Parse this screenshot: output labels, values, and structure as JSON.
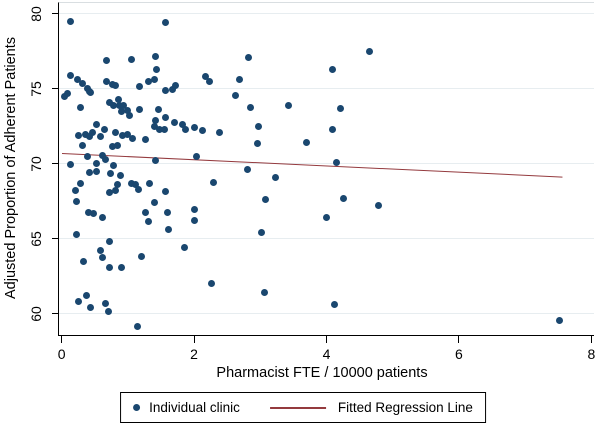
{
  "chart_data": {
    "type": "scatter",
    "title": "",
    "xlabel": "Pharmacist FTE / 10000 patients",
    "ylabel": "Adjusted Proportion of Adherent Patients",
    "xlim": [
      -0.04,
      8.04
    ],
    "ylim": [
      58.6,
      80.7
    ],
    "xticks": [
      0,
      2,
      4,
      6,
      8
    ],
    "yticks": [
      60,
      65,
      70,
      75,
      80
    ],
    "grid": "horizontal-only",
    "grid_color": "#e7edf0",
    "legend_position": "bottom-center-boxed",
    "series": [
      {
        "name": "Individual clinic",
        "type": "scatter",
        "color": "#1a476f",
        "points": [
          [
            0.14,
            79.45
          ],
          [
            1.57,
            79.4
          ],
          [
            0.68,
            76.85
          ],
          [
            1.06,
            76.95
          ],
          [
            1.41,
            77.15
          ],
          [
            1.44,
            76.3
          ],
          [
            2.82,
            77.1
          ],
          [
            4.65,
            77.45
          ],
          [
            4.09,
            76.25
          ],
          [
            0.14,
            75.9
          ],
          [
            0.24,
            75.6
          ],
          [
            0.32,
            75.35
          ],
          [
            0.39,
            75.0
          ],
          [
            0.44,
            74.75
          ],
          [
            0.68,
            75.45
          ],
          [
            0.77,
            75.3
          ],
          [
            0.82,
            75.2
          ],
          [
            1.18,
            75.15
          ],
          [
            1.31,
            75.5
          ],
          [
            1.4,
            75.6
          ],
          [
            1.57,
            74.85
          ],
          [
            1.67,
            74.95
          ],
          [
            1.72,
            75.2
          ],
          [
            2.17,
            75.8
          ],
          [
            2.24,
            75.45
          ],
          [
            2.68,
            75.6
          ],
          [
            0.05,
            74.5
          ],
          [
            0.09,
            74.7
          ],
          [
            0.42,
            74.8
          ],
          [
            2.62,
            74.55
          ],
          [
            0.29,
            73.75
          ],
          [
            0.72,
            74.05
          ],
          [
            0.78,
            73.9
          ],
          [
            0.86,
            74.3
          ],
          [
            0.87,
            73.85
          ],
          [
            0.94,
            73.9
          ],
          [
            0.91,
            73.5
          ],
          [
            1.0,
            73.55
          ],
          [
            1.03,
            73.2
          ],
          [
            1.18,
            73.6
          ],
          [
            1.47,
            73.6
          ],
          [
            1.57,
            73.05
          ],
          [
            2.85,
            73.75
          ],
          [
            3.43,
            73.85
          ],
          [
            4.21,
            73.65
          ],
          [
            1.7,
            72.75
          ],
          [
            1.82,
            72.6
          ],
          [
            1.42,
            72.85
          ],
          [
            1.4,
            72.5
          ],
          [
            1.48,
            72.3
          ],
          [
            1.56,
            72.3
          ],
          [
            1.87,
            72.3
          ],
          [
            2.01,
            72.4
          ],
          [
            2.13,
            72.2
          ],
          [
            2.38,
            72.05
          ],
          [
            2.97,
            72.45
          ],
          [
            4.09,
            72.25
          ],
          [
            0.52,
            72.6
          ],
          [
            0.64,
            72.3
          ],
          [
            0.46,
            72.1
          ],
          [
            0.36,
            71.95
          ],
          [
            0.26,
            71.9
          ],
          [
            0.42,
            71.8
          ],
          [
            0.59,
            71.8
          ],
          [
            0.82,
            72.05
          ],
          [
            0.92,
            71.9
          ],
          [
            1.0,
            71.95
          ],
          [
            1.07,
            71.65
          ],
          [
            0.32,
            71.2
          ],
          [
            0.77,
            71.15
          ],
          [
            0.84,
            71.2
          ],
          [
            1.27,
            71.6
          ],
          [
            2.96,
            71.35
          ],
          [
            3.7,
            71.4
          ],
          [
            0.39,
            70.5
          ],
          [
            0.62,
            70.55
          ],
          [
            0.66,
            70.25
          ],
          [
            0.13,
            69.95
          ],
          [
            0.52,
            70.0
          ],
          [
            0.79,
            69.85
          ],
          [
            1.42,
            70.2
          ],
          [
            2.03,
            70.45
          ],
          [
            4.15,
            70.05
          ],
          [
            2.81,
            69.65
          ],
          [
            0.42,
            69.4
          ],
          [
            0.52,
            69.5
          ],
          [
            0.74,
            69.35
          ],
          [
            0.89,
            69.25
          ],
          [
            3.23,
            69.1
          ],
          [
            0.29,
            68.7
          ],
          [
            0.21,
            68.2
          ],
          [
            0.72,
            68.1
          ],
          [
            0.81,
            68.2
          ],
          [
            0.84,
            68.6
          ],
          [
            1.06,
            68.7
          ],
          [
            1.12,
            68.6
          ],
          [
            1.16,
            68.3
          ],
          [
            1.32,
            68.7
          ],
          [
            1.57,
            68.15
          ],
          [
            2.29,
            68.75
          ],
          [
            0.22,
            67.5
          ],
          [
            0.41,
            66.75
          ],
          [
            0.48,
            66.7
          ],
          [
            0.62,
            66.45
          ],
          [
            1.4,
            67.4
          ],
          [
            1.26,
            66.75
          ],
          [
            1.31,
            66.15
          ],
          [
            1.6,
            66.75
          ],
          [
            3.08,
            67.65
          ],
          [
            4.26,
            67.7
          ],
          [
            4.79,
            67.2
          ],
          [
            1.62,
            65.6
          ],
          [
            2.0,
            66.95
          ],
          [
            2.0,
            66.2
          ],
          [
            4.0,
            66.45
          ],
          [
            0.23,
            65.3
          ],
          [
            3.02,
            65.4
          ],
          [
            0.72,
            64.85
          ],
          [
            0.59,
            64.25
          ],
          [
            0.61,
            63.75
          ],
          [
            0.33,
            63.5
          ],
          [
            0.73,
            63.1
          ],
          [
            0.91,
            63.1
          ],
          [
            1.2,
            63.85
          ],
          [
            1.86,
            64.4
          ],
          [
            2.27,
            62.05
          ],
          [
            3.06,
            61.4
          ],
          [
            0.38,
            61.25
          ],
          [
            0.26,
            60.8
          ],
          [
            0.44,
            60.45
          ],
          [
            0.66,
            60.7
          ],
          [
            0.71,
            60.15
          ],
          [
            4.12,
            60.65
          ],
          [
            1.15,
            59.15
          ],
          [
            7.52,
            59.55
          ]
        ]
      },
      {
        "name": "Fitted Regression Line",
        "type": "line",
        "color": "#943a3e",
        "x1": 0,
        "y1": 70.68,
        "x2": 7.56,
        "y2": 69.11
      }
    ],
    "legend": {
      "items": [
        {
          "label": "Individual clinic",
          "marker": "dot"
        },
        {
          "label": "Fitted Regression Line",
          "marker": "line"
        }
      ]
    }
  }
}
